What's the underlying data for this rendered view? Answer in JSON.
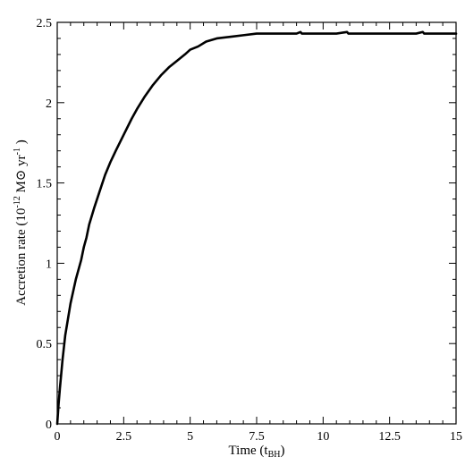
{
  "chart_data": {
    "type": "line",
    "xlabel": "Time (t",
    "xlabel_sub": "BH",
    "xlabel_tail": ")",
    "ylabel": "Accretion rate (10",
    "ylabel_sup": "-12",
    "ylabel_mid": " M",
    "ylabel_sun": "⊙",
    "ylabel_unit": " yr",
    "ylabel_sup2": "-1",
    "ylabel_tail": " )",
    "xlim": [
      0,
      15
    ],
    "ylim": [
      0,
      2.5
    ],
    "x_ticks": [
      0,
      2.5,
      5,
      7.5,
      10,
      12.5,
      15
    ],
    "x_tick_labels": [
      "0",
      "2.5",
      "5",
      "7.5",
      "10",
      "12.5",
      "15"
    ],
    "y_ticks": [
      0,
      0.5,
      1,
      1.5,
      2,
      2.5
    ],
    "y_tick_labels": [
      "0",
      "0.5",
      "1",
      "1.5",
      "2",
      "2.5"
    ],
    "grid": false,
    "series": [
      {
        "color": "#000000",
        "x": [
          0,
          0.05,
          0.1,
          0.2,
          0.3,
          0.5,
          0.7,
          0.9,
          1.0,
          1.1,
          1.2,
          1.4,
          1.6,
          1.8,
          2.0,
          2.2,
          2.5,
          2.8,
          3.0,
          3.3,
          3.6,
          3.9,
          4.2,
          4.5,
          4.8,
          5.0,
          5.3,
          5.6,
          6.0,
          6.5,
          7.0,
          7.5,
          8.0,
          8.5,
          9.0,
          9.15,
          9.2,
          9.5,
          10.0,
          10.5,
          10.9,
          10.95,
          11.0,
          11.5,
          12.0,
          12.5,
          13.0,
          13.5,
          13.75,
          13.8,
          14.0,
          14.5,
          15.0
        ],
        "y": [
          0,
          0.12,
          0.22,
          0.4,
          0.55,
          0.75,
          0.9,
          1.02,
          1.1,
          1.16,
          1.24,
          1.35,
          1.45,
          1.55,
          1.63,
          1.7,
          1.8,
          1.9,
          1.96,
          2.04,
          2.11,
          2.17,
          2.22,
          2.26,
          2.3,
          2.33,
          2.35,
          2.38,
          2.4,
          2.41,
          2.42,
          2.43,
          2.43,
          2.43,
          2.43,
          2.44,
          2.43,
          2.43,
          2.43,
          2.43,
          2.44,
          2.43,
          2.43,
          2.43,
          2.43,
          2.43,
          2.43,
          2.43,
          2.44,
          2.43,
          2.43,
          2.43,
          2.43
        ]
      }
    ]
  }
}
